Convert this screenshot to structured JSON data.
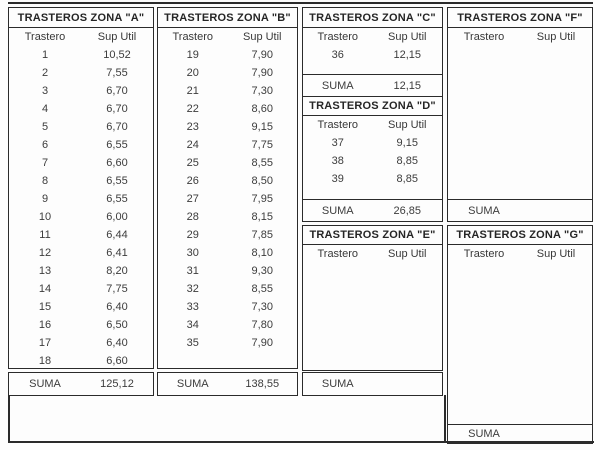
{
  "zones": [
    {
      "id": "A",
      "title": "TRASTEROS ZONA \"A\"",
      "col_trastero": "Trastero",
      "col_sup": "Sup Util",
      "rows": [
        {
          "num": "1",
          "sup": "10,52"
        },
        {
          "num": "2",
          "sup": "7,55"
        },
        {
          "num": "3",
          "sup": "6,70"
        },
        {
          "num": "4",
          "sup": "6,70"
        },
        {
          "num": "5",
          "sup": "6,70"
        },
        {
          "num": "6",
          "sup": "6,55"
        },
        {
          "num": "7",
          "sup": "6,60"
        },
        {
          "num": "8",
          "sup": "6,55"
        },
        {
          "num": "9",
          "sup": "6,55"
        },
        {
          "num": "10",
          "sup": "6,00"
        },
        {
          "num": "11",
          "sup": "6,44"
        },
        {
          "num": "12",
          "sup": "6,41"
        },
        {
          "num": "13",
          "sup": "8,20"
        },
        {
          "num": "14",
          "sup": "7,75"
        },
        {
          "num": "15",
          "sup": "6,40"
        },
        {
          "num": "16",
          "sup": "6,50"
        },
        {
          "num": "17",
          "sup": "6,40"
        },
        {
          "num": "18",
          "sup": "6,60"
        }
      ],
      "suma_label": "SUMA",
      "suma_value": "125,12"
    },
    {
      "id": "B",
      "title": "TRASTEROS ZONA \"B\"",
      "col_trastero": "Trastero",
      "col_sup": "Sup Util",
      "rows": [
        {
          "num": "19",
          "sup": "7,90"
        },
        {
          "num": "20",
          "sup": "7,90"
        },
        {
          "num": "21",
          "sup": "7,30"
        },
        {
          "num": "22",
          "sup": "8,60"
        },
        {
          "num": "23",
          "sup": "9,15"
        },
        {
          "num": "24",
          "sup": "7,75"
        },
        {
          "num": "25",
          "sup": "8,55"
        },
        {
          "num": "26",
          "sup": "8,50"
        },
        {
          "num": "27",
          "sup": "7,95"
        },
        {
          "num": "28",
          "sup": "8,15"
        },
        {
          "num": "29",
          "sup": "7,85"
        },
        {
          "num": "30",
          "sup": "8,10"
        },
        {
          "num": "31",
          "sup": "9,30"
        },
        {
          "num": "32",
          "sup": "8,55"
        },
        {
          "num": "33",
          "sup": "7,30"
        },
        {
          "num": "34",
          "sup": "7,80"
        },
        {
          "num": "35",
          "sup": "7,90"
        }
      ],
      "suma_label": "SUMA",
      "suma_value": "138,55"
    },
    {
      "id": "C",
      "title": "TRASTEROS ZONA \"C\"",
      "col_trastero": "Trastero",
      "col_sup": "Sup Util",
      "rows": [
        {
          "num": "36",
          "sup": "12,15"
        }
      ],
      "suma_label": "SUMA",
      "suma_value": "12,15"
    },
    {
      "id": "D",
      "title": "TRASTEROS ZONA \"D\"",
      "col_trastero": "Trastero",
      "col_sup": "Sup Util",
      "rows": [
        {
          "num": "37",
          "sup": "9,15"
        },
        {
          "num": "38",
          "sup": "8,85"
        },
        {
          "num": "39",
          "sup": "8,85"
        }
      ],
      "suma_label": "SUMA",
      "suma_value": "26,85"
    },
    {
      "id": "E",
      "title": "TRASTEROS ZONA \"E\"",
      "col_trastero": "Trastero",
      "col_sup": "Sup Util",
      "rows": [],
      "suma_label": "SUMA",
      "suma_value": ""
    },
    {
      "id": "F",
      "title": "TRASTEROS ZONA \"F\"",
      "col_trastero": "Trastero",
      "col_sup": "Sup Util",
      "rows": [],
      "suma_label": "SUMA",
      "suma_value": ""
    },
    {
      "id": "G",
      "title": "TRASTEROS ZONA \"G\"",
      "col_trastero": "Trastero",
      "col_sup": "Sup Util",
      "rows": [],
      "suma_label": "SUMA",
      "suma_value": ""
    }
  ]
}
